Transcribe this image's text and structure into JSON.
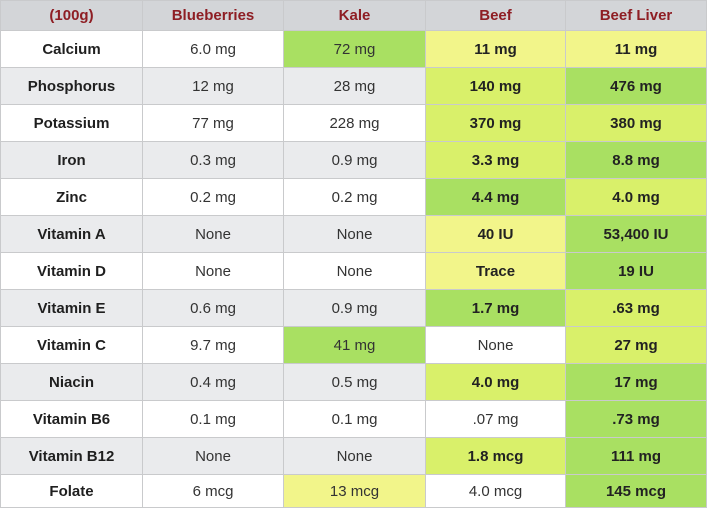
{
  "table": {
    "headers": [
      "(100g)",
      "Blueberries",
      "Kale",
      "Beef",
      "Beef Liver"
    ],
    "rows": [
      {
        "nutrient": "Calcium",
        "values": [
          "6.0 mg",
          "72 mg",
          "11 mg",
          "11 mg"
        ],
        "highlight": [
          "",
          "green",
          "yellow",
          "yellow"
        ]
      },
      {
        "nutrient": "Phosphorus",
        "values": [
          "12 mg",
          "28 mg",
          "140 mg",
          "476 mg"
        ],
        "highlight": [
          "",
          "",
          "lime",
          "green"
        ]
      },
      {
        "nutrient": "Potassium",
        "values": [
          "77 mg",
          "228 mg",
          "370 mg",
          "380 mg"
        ],
        "highlight": [
          "",
          "",
          "lime",
          "lime"
        ]
      },
      {
        "nutrient": "Iron",
        "values": [
          "0.3 mg",
          "0.9 mg",
          "3.3 mg",
          "8.8 mg"
        ],
        "highlight": [
          "",
          "",
          "lime",
          "green"
        ]
      },
      {
        "nutrient": "Zinc",
        "values": [
          "0.2 mg",
          "0.2 mg",
          "4.4 mg",
          "4.0 mg"
        ],
        "highlight": [
          "",
          "",
          "green",
          "lime"
        ]
      },
      {
        "nutrient": "Vitamin A",
        "values": [
          "None",
          "None",
          "40 IU",
          "53,400 IU"
        ],
        "highlight": [
          "",
          "",
          "yellow",
          "green"
        ]
      },
      {
        "nutrient": "Vitamin D",
        "values": [
          "None",
          "None",
          "Trace",
          "19 IU"
        ],
        "highlight": [
          "",
          "",
          "yellow",
          "green"
        ]
      },
      {
        "nutrient": "Vitamin E",
        "values": [
          "0.6 mg",
          "0.9 mg",
          "1.7 mg",
          ".63 mg"
        ],
        "highlight": [
          "",
          "",
          "green",
          "lime"
        ]
      },
      {
        "nutrient": "Vitamin C",
        "values": [
          "9.7 mg",
          "41 mg",
          "None",
          "27 mg"
        ],
        "highlight": [
          "",
          "green",
          "none",
          "lime"
        ]
      },
      {
        "nutrient": "Niacin",
        "values": [
          "0.4 mg",
          "0.5 mg",
          "4.0 mg",
          "17 mg"
        ],
        "highlight": [
          "",
          "",
          "lime",
          "green"
        ]
      },
      {
        "nutrient": "Vitamin B6",
        "values": [
          "0.1 mg",
          "0.1 mg",
          ".07 mg",
          ".73 mg"
        ],
        "highlight": [
          "",
          "",
          "none",
          "green"
        ]
      },
      {
        "nutrient": "Vitamin B12",
        "values": [
          "None",
          "None",
          "1.8 mcg",
          "111 mg"
        ],
        "highlight": [
          "",
          "",
          "lime",
          "green"
        ]
      },
      {
        "nutrient": "Folate",
        "values": [
          "6 mcg",
          "13 mcg",
          "4.0 mcg",
          "145 mcg"
        ],
        "highlight": [
          "",
          "yellow",
          "none",
          "green"
        ]
      }
    ]
  },
  "colors": {
    "header_bg": "#d3d5d8",
    "header_text": "#8e1e24",
    "yellow": "#f2f58a",
    "lime": "#d9f06a",
    "green": "#a9e062"
  }
}
